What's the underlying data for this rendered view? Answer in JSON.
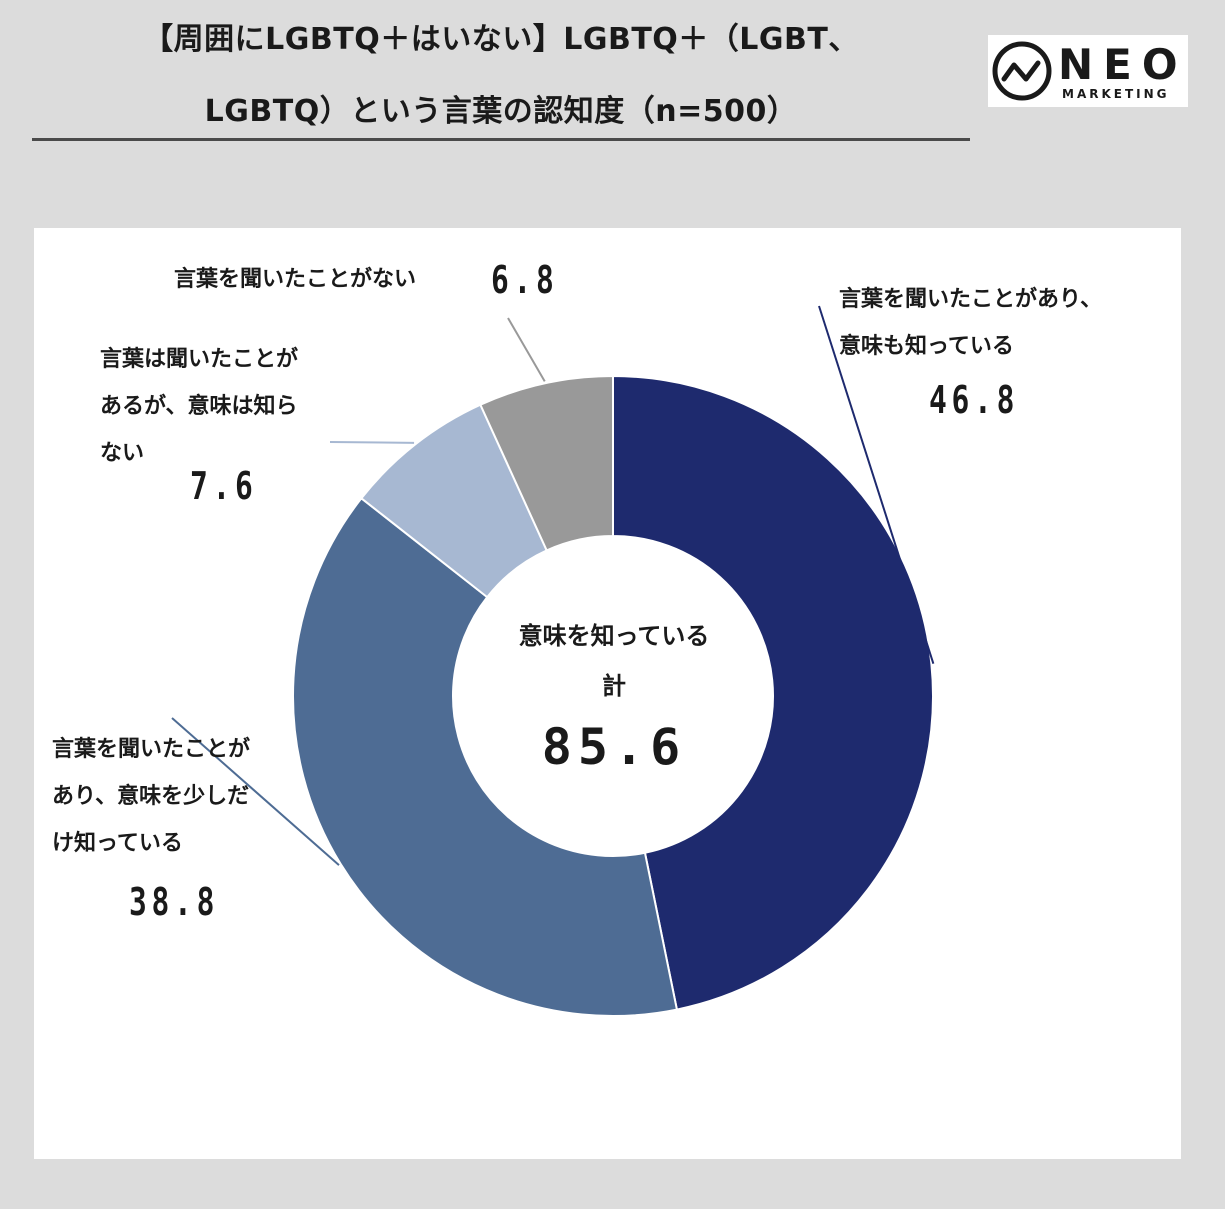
{
  "title": {
    "line1": "【周囲にLGBTQ＋はいない】LGBTQ＋（LGBT、",
    "line2": "LGBTQ）という言葉の認知度（n=500）"
  },
  "logo": {
    "name": "NEO",
    "sub": "MARKETING"
  },
  "chart_data": {
    "type": "pie",
    "donut": true,
    "unit": "%",
    "start": "12 o'clock, clockwise",
    "slices": [
      {
        "label": "言葉を聞いたことがあり、意味も知っている",
        "value": 46.8,
        "value_text": "46.8",
        "color": "#1e2a6e"
      },
      {
        "label": "言葉を聞いたことがあり、意味を少しだけ知っている",
        "value": 38.8,
        "value_text": "38.8",
        "color": "#4e6c94"
      },
      {
        "label": "言葉は聞いたことがあるが、意味は知らない",
        "value": 7.6,
        "value_text": "7.6",
        "color": "#a7b8d2"
      },
      {
        "label": "言葉を聞いたことがない",
        "value": 6.8,
        "value_text": "6.8",
        "color": "#999999"
      }
    ],
    "center": {
      "label_line1": "意味を知っている",
      "label_line2": "計",
      "value": 85.6,
      "value_text": "85.6"
    },
    "label_lines": {
      "s0": [
        "言葉を聞いたことがあり、",
        "意味も知っている"
      ],
      "s1": [
        "言葉を聞いたことが",
        "あり、意味を少しだ",
        "け知っている"
      ],
      "s2": [
        "言葉は聞いたことが",
        "あるが、意味は知ら",
        "ない"
      ],
      "s3": [
        "言葉を聞いたことがない"
      ]
    }
  }
}
